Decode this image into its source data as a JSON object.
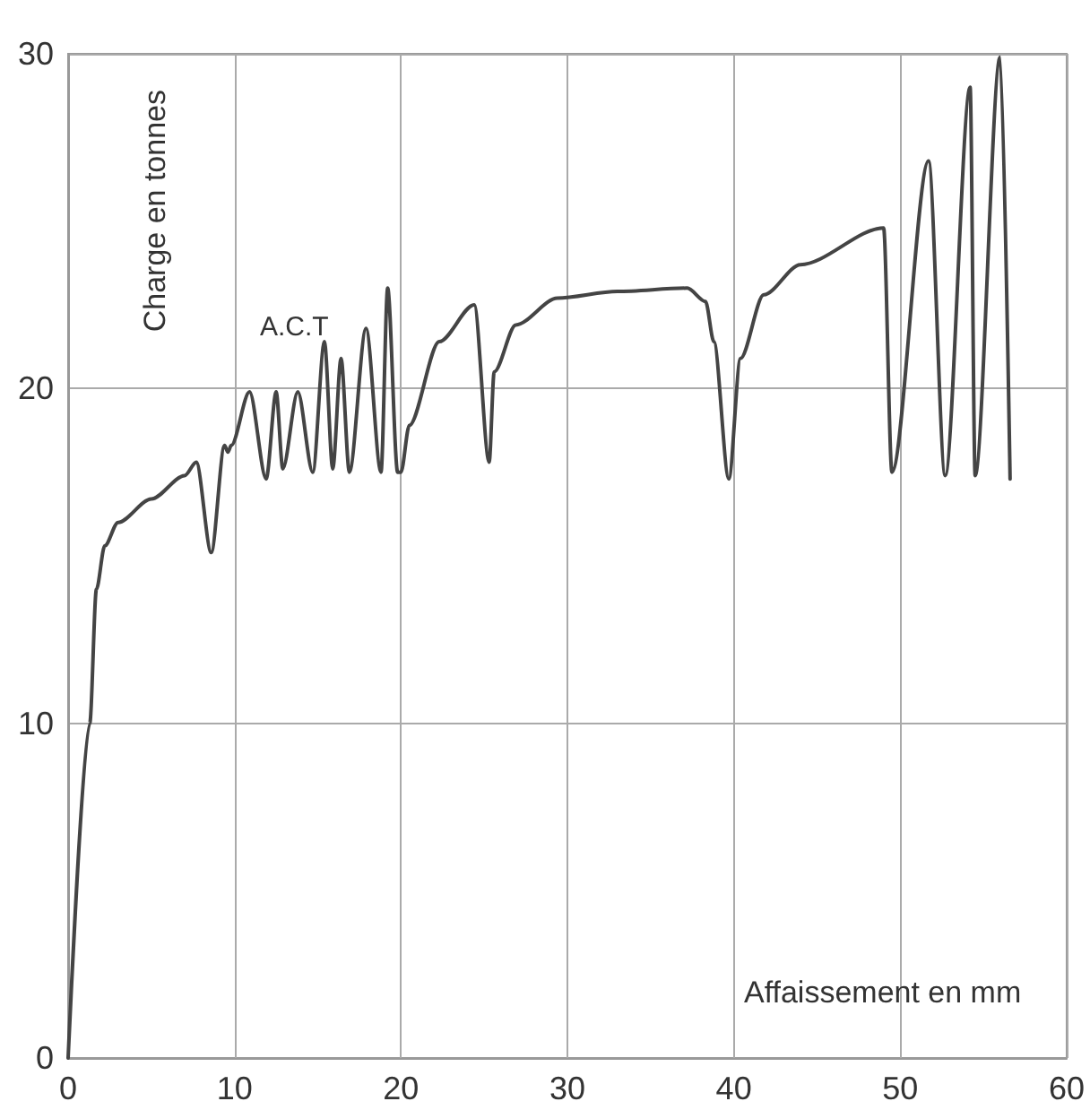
{
  "chart_data": {
    "type": "line",
    "xlabel": "Affaissement en mm",
    "ylabel": "Charge en tonnes",
    "annotations": [
      "A.C.T"
    ],
    "xlim": [
      0,
      60
    ],
    "ylim": [
      0,
      30
    ],
    "xticks": [
      0,
      10,
      20,
      30,
      40,
      50,
      60
    ],
    "yticks": [
      0,
      10,
      20,
      30
    ],
    "grid": true,
    "marker": "none",
    "line_style": "solid",
    "series": [
      {
        "color": "#444444",
        "x": [
          0,
          1.3,
          1.7,
          2.2,
          3,
          5,
          7,
          7.7,
          8.6,
          9.4,
          9.6,
          9.8,
          10.9,
          11.9,
          12.5,
          12.9,
          13.8,
          14.7,
          15.4,
          15.9,
          16.4,
          16.9,
          17.9,
          18.8,
          19.2,
          19.8,
          20,
          20.5,
          22.3,
          24.4,
          25.3,
          25.6,
          26.9,
          29.4,
          33,
          37.2,
          38.3,
          38.8,
          39.7,
          40.4,
          41.8,
          44,
          49,
          49.5,
          51.7,
          52.7,
          54.2,
          54.5,
          56,
          56.6
        ],
        "values": [
          0,
          10,
          14,
          15.3,
          16,
          16.7,
          17.4,
          17.8,
          15.1,
          18.3,
          18.1,
          18.3,
          19.9,
          17.3,
          19.9,
          17.6,
          19.9,
          17.5,
          21.4,
          17.6,
          20.9,
          17.5,
          21.8,
          17.5,
          23,
          17.5,
          17.5,
          18.9,
          21.4,
          22.5,
          17.8,
          20.5,
          21.9,
          22.7,
          22.9,
          23,
          22.6,
          21.4,
          17.3,
          20.9,
          22.8,
          23.7,
          24.8,
          17.5,
          26.8,
          17.4,
          29,
          17.4,
          29.9,
          17.3
        ]
      }
    ]
  }
}
